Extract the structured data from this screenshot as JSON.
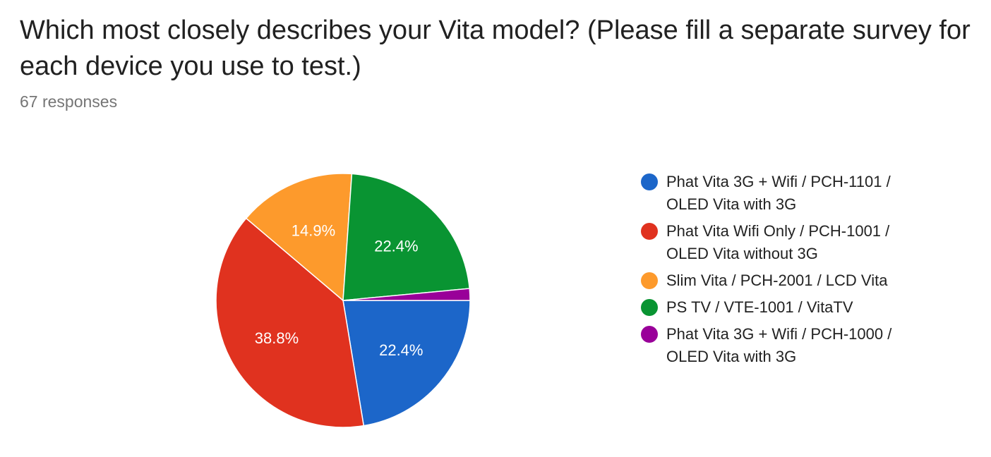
{
  "header": {
    "title": "Which most closely describes your Vita model? (Please fill a separate survey for each device you use to test.)",
    "responses": "67 responses"
  },
  "chart_data": {
    "type": "pie",
    "title": "Which most closely describes your Vita model? (Please fill a separate survey for each device you use to test.)",
    "legend_position": "right",
    "start_angle_deg": 0,
    "direction": "clockwise-from-3-oclock",
    "slices": [
      {
        "label": "Phat Vita 3G + Wifi / PCH-1101 / OLED Vita with 3G",
        "value": 22.4,
        "display": "22.4%",
        "color": "#1c66c9"
      },
      {
        "label": "Phat Vita Wifi Only / PCH-1001 / OLED Vita without 3G",
        "value": 38.8,
        "display": "38.8%",
        "color": "#e0321f"
      },
      {
        "label": "Slim Vita / PCH-2001 / LCD Vita",
        "value": 14.9,
        "display": "14.9%",
        "color": "#fd9a2c"
      },
      {
        "label": "PS TV / VTE-1001 / VitaTV",
        "value": 22.4,
        "display": "22.4%",
        "color": "#099432"
      },
      {
        "label": "Phat Vita 3G + Wifi / PCH-1000 / OLED Vita with 3G",
        "value": 1.5,
        "display": "",
        "color": "#990099"
      }
    ]
  }
}
